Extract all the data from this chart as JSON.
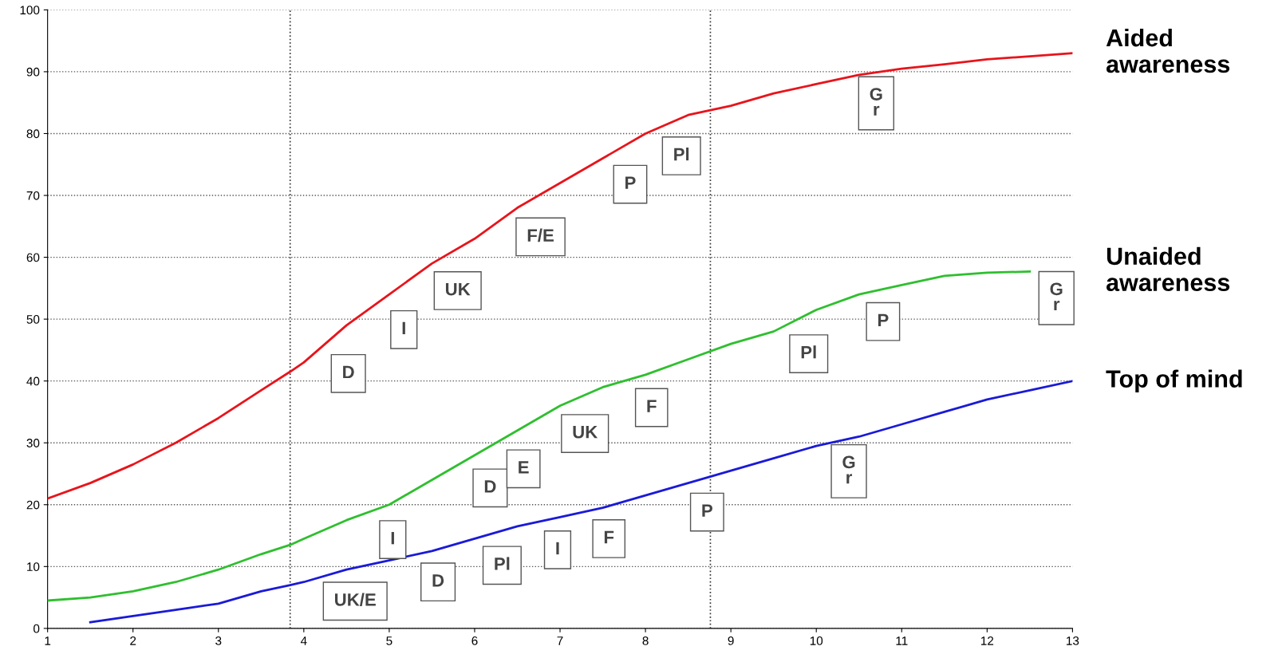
{
  "chart_data": {
    "type": "line",
    "x": [
      1,
      1.5,
      2,
      2.5,
      3,
      3.5,
      3.84,
      4,
      4.5,
      5,
      5.5,
      6,
      6.5,
      7,
      7.5,
      8,
      8.5,
      9,
      9.5,
      10,
      10.5,
      11,
      11.5,
      12,
      12.5,
      13
    ],
    "series": [
      {
        "name": "Aided awareness",
        "color": "#e8141b",
        "values": [
          21,
          23.5,
          26.5,
          30,
          34,
          38.5,
          41.5,
          43,
          49,
          54,
          59,
          63,
          68,
          72,
          76,
          80,
          83,
          84.5,
          86.5,
          88,
          89.5,
          90.5,
          91.2,
          92,
          92.5,
          93
        ]
      },
      {
        "name": "Unaided awareness",
        "color": "#2fbf2f",
        "values": [
          4.5,
          5,
          6,
          7.5,
          9.5,
          12,
          13.5,
          14.5,
          17.5,
          20,
          24,
          28,
          32,
          36,
          39,
          41,
          43.5,
          46,
          48,
          51.5,
          54,
          55.5,
          57,
          57.5,
          57.7,
          null
        ]
      },
      {
        "name": "Top of mind",
        "color": "#1a1ad8",
        "values": [
          null,
          1,
          2,
          3,
          4,
          6,
          7,
          7.5,
          9.5,
          11,
          12.5,
          14.5,
          16.5,
          18,
          19.5,
          21.5,
          23.5,
          25.5,
          27.5,
          29.5,
          31,
          33,
          35,
          37,
          38.5,
          40
        ]
      }
    ],
    "xlim": [
      1,
      13
    ],
    "ylim": [
      0,
      100
    ],
    "xticks": [
      1,
      2,
      3,
      4,
      5,
      6,
      7,
      8,
      9,
      10,
      11,
      12,
      13
    ],
    "yticks": [
      0,
      10,
      20,
      30,
      40,
      50,
      60,
      70,
      80,
      90,
      100
    ],
    "grid": "y",
    "legend": false,
    "marker": "none",
    "line_style": "solid",
    "ref_lines": [
      {
        "axis": "x",
        "value": 3.84,
        "line_style": "dotted"
      },
      {
        "axis": "x",
        "value": 8.76,
        "line_style": "dotted"
      }
    ],
    "annotations": [
      {
        "text": "D",
        "x": 4.21,
        "y": 45.5
      },
      {
        "text": "I",
        "x": 4.86,
        "y": 52.6
      },
      {
        "text": "UK",
        "x": 5.49,
        "y": 58.9
      },
      {
        "text": "F/E",
        "x": 6.46,
        "y": 67.6
      },
      {
        "text": "P",
        "x": 7.51,
        "y": 76.1
      },
      {
        "text": "Pl",
        "x": 8.11,
        "y": 80.7
      },
      {
        "text": "G\nr",
        "x": 10.39,
        "y": 89.2
      },
      {
        "text": "I",
        "x": 4.73,
        "y": 18.65
      },
      {
        "text": "D",
        "x": 5.87,
        "y": 27
      },
      {
        "text": "E",
        "x": 6.26,
        "y": 30.1
      },
      {
        "text": "UK",
        "x": 6.98,
        "y": 35.8
      },
      {
        "text": "F",
        "x": 7.76,
        "y": 40
      },
      {
        "text": "Pl",
        "x": 9.6,
        "y": 48.7
      },
      {
        "text": "P",
        "x": 10.47,
        "y": 53.9
      },
      {
        "text": "G\nr",
        "x": 12.5,
        "y": 57.7
      },
      {
        "text": "UK/E",
        "x": 4.29,
        "y": 8.7
      },
      {
        "text": "D",
        "x": 5.26,
        "y": 11.8
      },
      {
        "text": "Pl",
        "x": 6.01,
        "y": 14.5
      },
      {
        "text": "I",
        "x": 6.66,
        "y": 17
      },
      {
        "text": "F",
        "x": 7.26,
        "y": 18.8
      },
      {
        "text": "P",
        "x": 8.41,
        "y": 23.1
      },
      {
        "text": "G\nr",
        "x": 10.07,
        "y": 29.7
      }
    ]
  }
}
